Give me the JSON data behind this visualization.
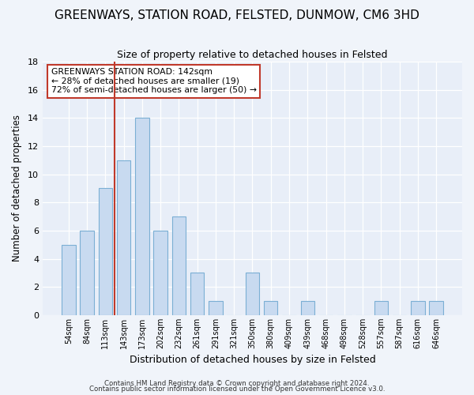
{
  "title": "GREENWAYS, STATION ROAD, FELSTED, DUNMOW, CM6 3HD",
  "subtitle": "Size of property relative to detached houses in Felsted",
  "xlabel": "Distribution of detached houses by size in Felsted",
  "ylabel": "Number of detached properties",
  "bar_labels": [
    "54sqm",
    "84sqm",
    "113sqm",
    "143sqm",
    "173sqm",
    "202sqm",
    "232sqm",
    "261sqm",
    "291sqm",
    "321sqm",
    "350sqm",
    "380sqm",
    "409sqm",
    "439sqm",
    "468sqm",
    "498sqm",
    "528sqm",
    "557sqm",
    "587sqm",
    "616sqm",
    "646sqm"
  ],
  "bar_heights": [
    5,
    6,
    9,
    11,
    14,
    6,
    7,
    3,
    1,
    0,
    3,
    1,
    0,
    1,
    0,
    0,
    0,
    1,
    0,
    1,
    1
  ],
  "bar_color": "#c8daf0",
  "bar_edge_color": "#7bafd4",
  "vline_color": "#c0392b",
  "vline_index": 3,
  "ylim": [
    0,
    18
  ],
  "yticks": [
    0,
    2,
    4,
    6,
    8,
    10,
    12,
    14,
    16,
    18
  ],
  "annotation_line1": "GREENWAYS STATION ROAD: 142sqm",
  "annotation_line2": "← 28% of detached houses are smaller (19)",
  "annotation_line3": "72% of semi-detached houses are larger (50) →",
  "footer1": "Contains HM Land Registry data © Crown copyright and database right 2024.",
  "footer2": "Contains public sector information licensed under the Open Government Licence v3.0.",
  "bg_color": "#f0f4fa",
  "plot_bg_color": "#e8eef8",
  "grid_color": "#ffffff",
  "title_fontsize": 11,
  "subtitle_fontsize": 9,
  "bar_width": 0.75
}
